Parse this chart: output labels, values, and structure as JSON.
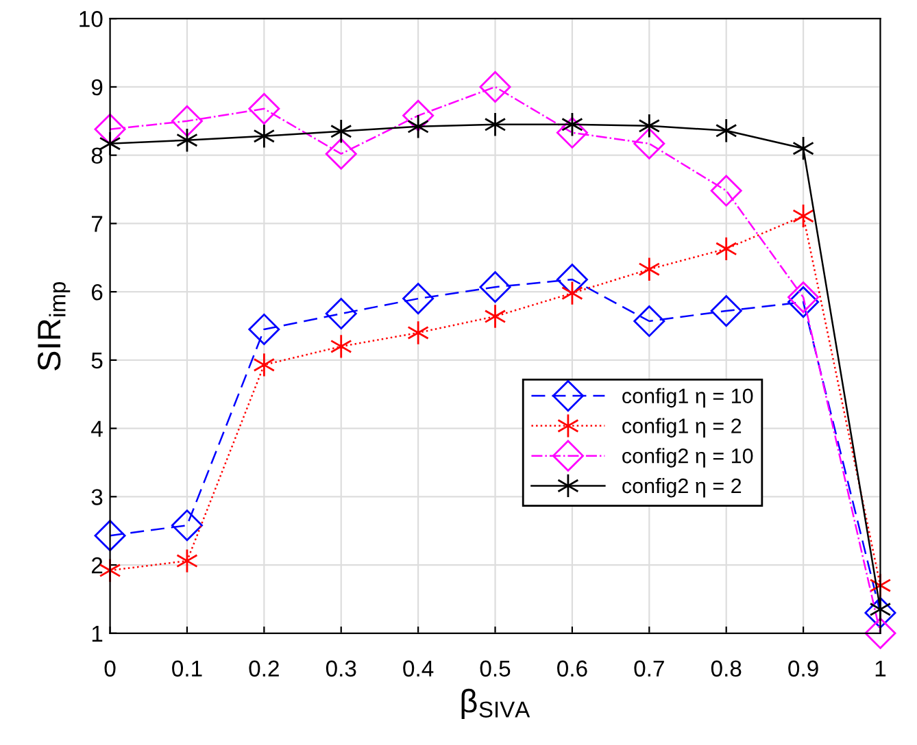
{
  "chart_data": {
    "type": "line",
    "xlabel": "β$_{SIVA}$",
    "ylabel": "SIR$_{imp}$",
    "x": [
      0,
      0.1,
      0.2,
      0.3,
      0.4,
      0.5,
      0.6,
      0.7,
      0.8,
      0.9,
      1
    ],
    "xlim": [
      0,
      1
    ],
    "xticks": [
      0,
      0.1,
      0.2,
      0.3,
      0.4,
      0.5,
      0.6,
      0.7,
      0.8,
      0.9,
      1
    ],
    "ylim": [
      1,
      10
    ],
    "yticks": [
      1,
      2,
      3,
      4,
      5,
      6,
      7,
      8,
      9,
      10
    ],
    "grid": true,
    "legend": "right",
    "series": [
      {
        "name": "config1 η = 10",
        "color": "#0000ff",
        "marker": "diamond",
        "line_style": "dashed",
        "values": [
          2.43,
          2.58,
          5.45,
          5.68,
          5.9,
          6.07,
          6.18,
          5.57,
          5.72,
          5.85,
          1.3
        ]
      },
      {
        "name": "config1 η = 2",
        "color": "#ff0000",
        "marker": "cross",
        "line_style": "dotted",
        "values": [
          1.92,
          2.06,
          4.93,
          5.2,
          5.4,
          5.64,
          5.98,
          6.33,
          6.63,
          7.11,
          1.7
        ]
      },
      {
        "name": "config2 η = 10",
        "color": "#ff00ff",
        "marker": "diamond",
        "line_style": "dashdot",
        "values": [
          8.38,
          8.5,
          8.68,
          8.02,
          8.58,
          9.0,
          8.33,
          8.17,
          7.48,
          5.92,
          1.0
        ]
      },
      {
        "name": "config2 η = 2",
        "color": "#000000",
        "marker": "cross",
        "line_style": "solid",
        "values": [
          8.17,
          8.22,
          8.28,
          8.35,
          8.42,
          8.45,
          8.45,
          8.43,
          8.36,
          8.1,
          1.35
        ]
      }
    ]
  }
}
